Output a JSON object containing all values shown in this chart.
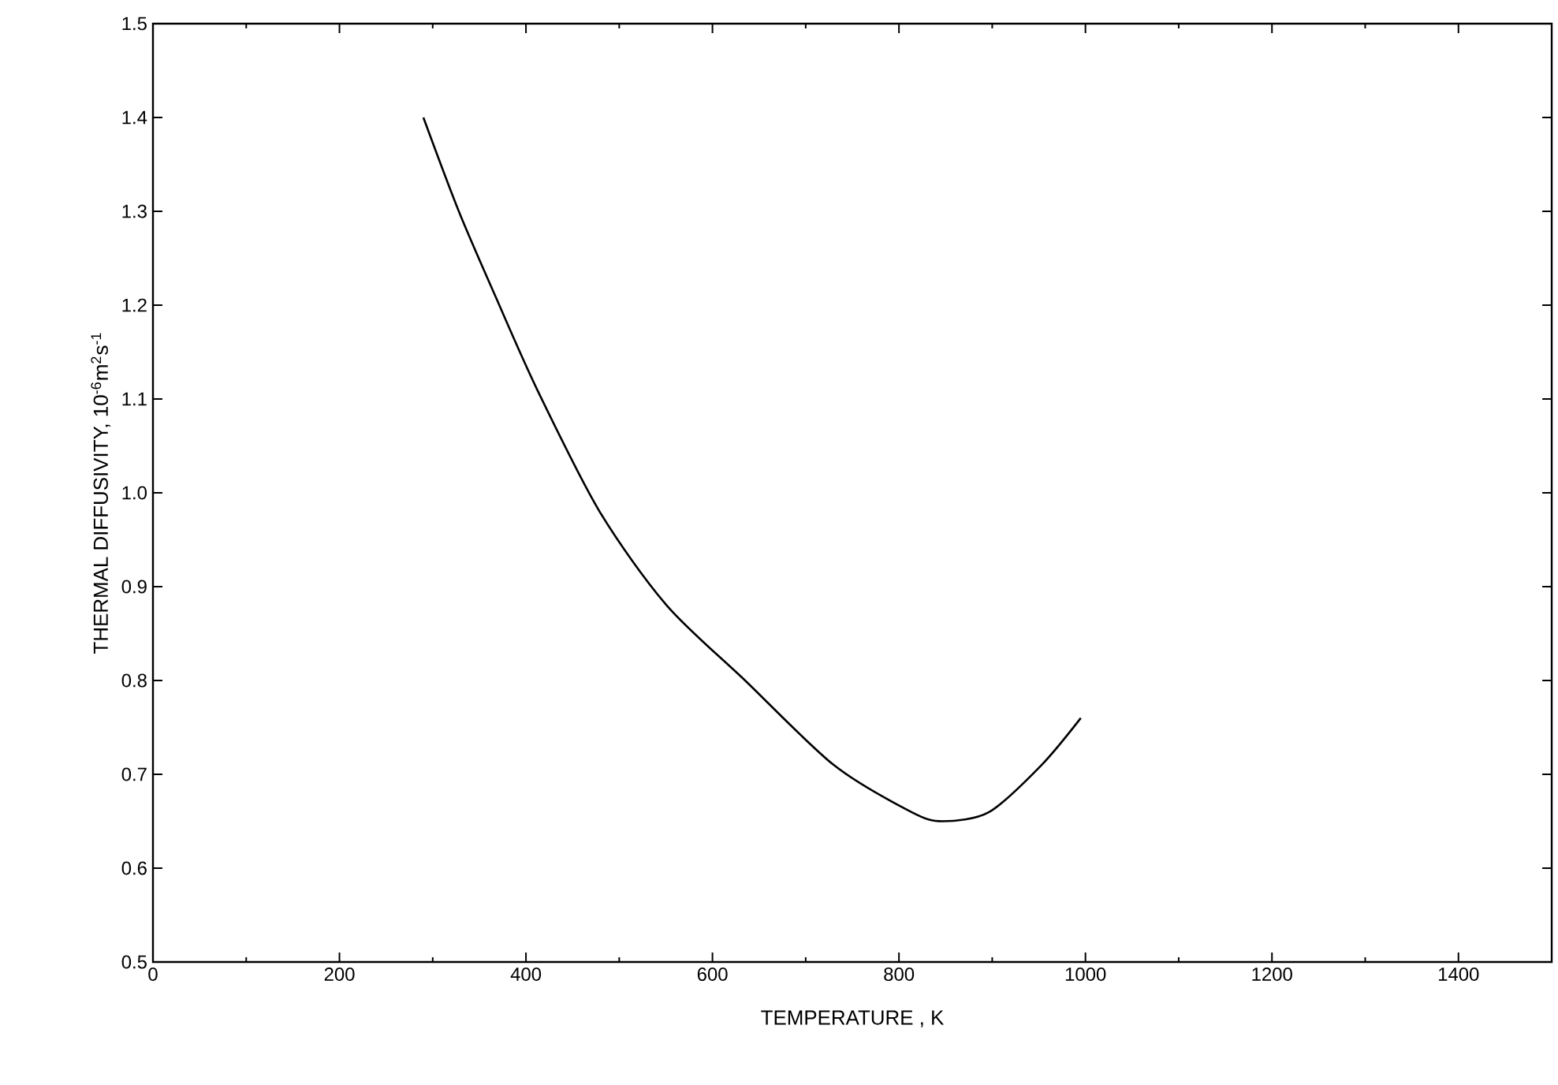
{
  "chart_data": {
    "type": "line",
    "xlabel": "TEMPERATURE , K",
    "ylabel": "THERMAL DIFFUSIVITY, 10$^{-6}$m$^{2}$s$^{-1}$",
    "x": [
      290,
      328,
      367,
      412,
      479,
      551,
      635,
      730,
      813,
      847,
      897,
      953,
      995
    ],
    "series": [
      {
        "color": "#000000",
        "values": [
          1.4,
          1.3,
          1.21,
          1.11,
          0.98,
          0.88,
          0.8,
          0.71,
          0.66,
          0.65,
          0.66,
          0.71,
          0.76
        ]
      }
    ],
    "xlim": [
      0,
      1500
    ],
    "ylim": [
      0.5,
      1.5
    ],
    "xticks": [
      0,
      200,
      400,
      600,
      800,
      1000,
      1200,
      1400
    ],
    "yticks": [
      0.5,
      0.6,
      0.7,
      0.8,
      0.9,
      {
        "value": 1.0,
        "label": "1.0"
      },
      1.1,
      1.2,
      1.3,
      1.4,
      1.5
    ],
    "grid": false,
    "marker": "none",
    "line_style": "solid"
  }
}
